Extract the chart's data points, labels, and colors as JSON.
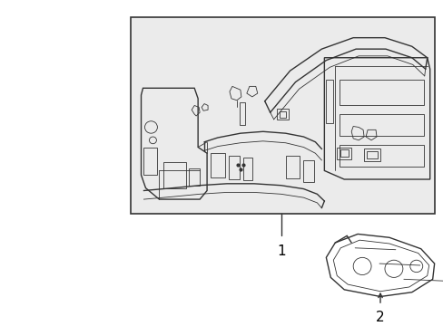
{
  "background_color": "#ffffff",
  "box_bg": "#ebebeb",
  "box_border": "#333333",
  "line_color": "#333333",
  "label_color": "#000000",
  "part1_label": "1",
  "part2_label": "2",
  "figsize": [
    4.89,
    3.6
  ],
  "dpi": 100
}
